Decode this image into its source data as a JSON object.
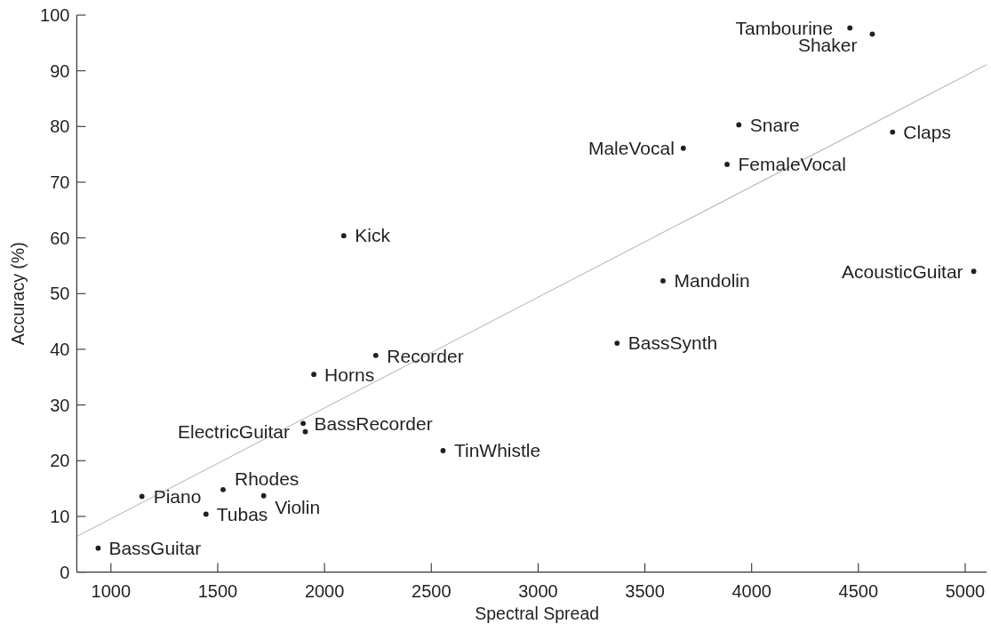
{
  "chart_data": {
    "type": "scatter",
    "xlabel": "Spectral Spread",
    "ylabel": "Accuracy (%)",
    "xlim": [
      840,
      5100
    ],
    "ylim": [
      0,
      100
    ],
    "xticks": [
      1000,
      1500,
      2000,
      2500,
      3000,
      3500,
      4000,
      4500,
      5000
    ],
    "yticks": [
      0,
      10,
      20,
      30,
      40,
      50,
      60,
      70,
      80,
      90,
      100
    ],
    "series": [
      {
        "color": "#231f20",
        "marker": "circle",
        "x": [
          4460,
          4565,
          3940,
          4660,
          3680,
          3885,
          2090,
          5040,
          3585,
          3370,
          2240,
          1950,
          1900,
          1910,
          2555,
          1525,
          1145,
          1715,
          1445,
          940
        ],
        "values": [
          97.7,
          96.6,
          80.3,
          79.0,
          76.1,
          73.2,
          60.4,
          54.0,
          52.3,
          41.1,
          38.9,
          35.5,
          26.7,
          25.2,
          21.8,
          14.8,
          13.6,
          13.7,
          10.4,
          4.3
        ]
      },
      {
        "type": "line",
        "color": "#c0c0c0",
        "x": [
          840,
          5100
        ],
        "values": [
          6.4,
          91.1
        ]
      }
    ],
    "annotations": [
      {
        "text": "Tambourine",
        "x": 4460,
        "y": 97.7
      },
      {
        "text": "Shaker",
        "x": 4565,
        "y": 96.6
      },
      {
        "text": "Snare",
        "x": 3940,
        "y": 80.3
      },
      {
        "text": "Claps",
        "x": 4660,
        "y": 79.0
      },
      {
        "text": "MaleVocal",
        "x": 3680,
        "y": 76.1
      },
      {
        "text": "FemaleVocal",
        "x": 3885,
        "y": 73.2
      },
      {
        "text": "Kick",
        "x": 2090,
        "y": 60.4
      },
      {
        "text": "AcousticGuitar",
        "x": 5040,
        "y": 54.0
      },
      {
        "text": "Mandolin",
        "x": 3585,
        "y": 52.3
      },
      {
        "text": "BassSynth",
        "x": 3370,
        "y": 41.1
      },
      {
        "text": "Recorder",
        "x": 2240,
        "y": 38.9
      },
      {
        "text": "Horns",
        "x": 1950,
        "y": 35.5
      },
      {
        "text": "BassRecorder",
        "x": 1900,
        "y": 26.7
      },
      {
        "text": "ElectricGuitar",
        "x": 1910,
        "y": 25.2
      },
      {
        "text": "TinWhistle",
        "x": 2555,
        "y": 21.8
      },
      {
        "text": "Rhodes",
        "x": 1525,
        "y": 14.8
      },
      {
        "text": "Piano",
        "x": 1145,
        "y": 13.6
      },
      {
        "text": "Violin",
        "x": 1715,
        "y": 13.7
      },
      {
        "text": "Tubas",
        "x": 1445,
        "y": 10.4
      },
      {
        "text": "BassGuitar",
        "x": 940,
        "y": 4.3
      }
    ]
  }
}
